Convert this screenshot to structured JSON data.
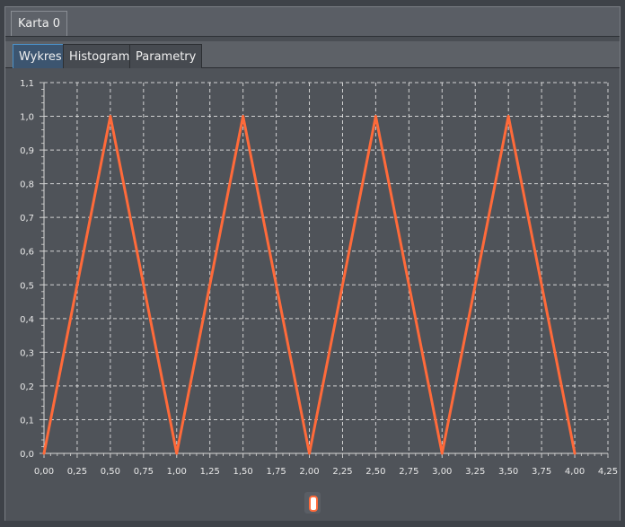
{
  "top_tabs": [
    {
      "label": "Karta 0"
    }
  ],
  "sub_tabs": [
    {
      "label": "Wykres",
      "active": true
    },
    {
      "label": "Histogram",
      "active": false
    },
    {
      "label": "Parametry",
      "active": false
    }
  ],
  "colors": {
    "series": "#ff6a3a",
    "grid": "#e8e8e8",
    "plot_background": "#4f5359",
    "active_tab_border": "#4a90c8"
  },
  "chart_data": {
    "type": "line",
    "title": "",
    "xlabel": "",
    "ylabel": "",
    "xlim": [
      0,
      4.25
    ],
    "ylim": [
      0,
      1.1
    ],
    "grid": true,
    "grid_style": "dashed",
    "x_ticks": [
      "0,00",
      "0,25",
      "0,50",
      "0,75",
      "1,00",
      "1,25",
      "1,50",
      "1,75",
      "2,00",
      "2,25",
      "2,50",
      "2,75",
      "3,00",
      "3,25",
      "3,50",
      "3,75",
      "4,00",
      "4,25"
    ],
    "y_ticks": [
      "0,0",
      "0,1",
      "0,2",
      "0,3",
      "0,4",
      "0,5",
      "0,6",
      "0,7",
      "0,8",
      "0,9",
      "1,0",
      "1,1"
    ],
    "series": [
      {
        "x": [
          0,
          0.5,
          1.0,
          1.5,
          2.0,
          2.5,
          3.0,
          3.5,
          4.0
        ],
        "y": [
          0,
          1.0,
          0,
          1.0,
          0,
          1.0,
          0,
          1.0,
          0
        ],
        "color": "#ff6a3a"
      }
    ]
  }
}
